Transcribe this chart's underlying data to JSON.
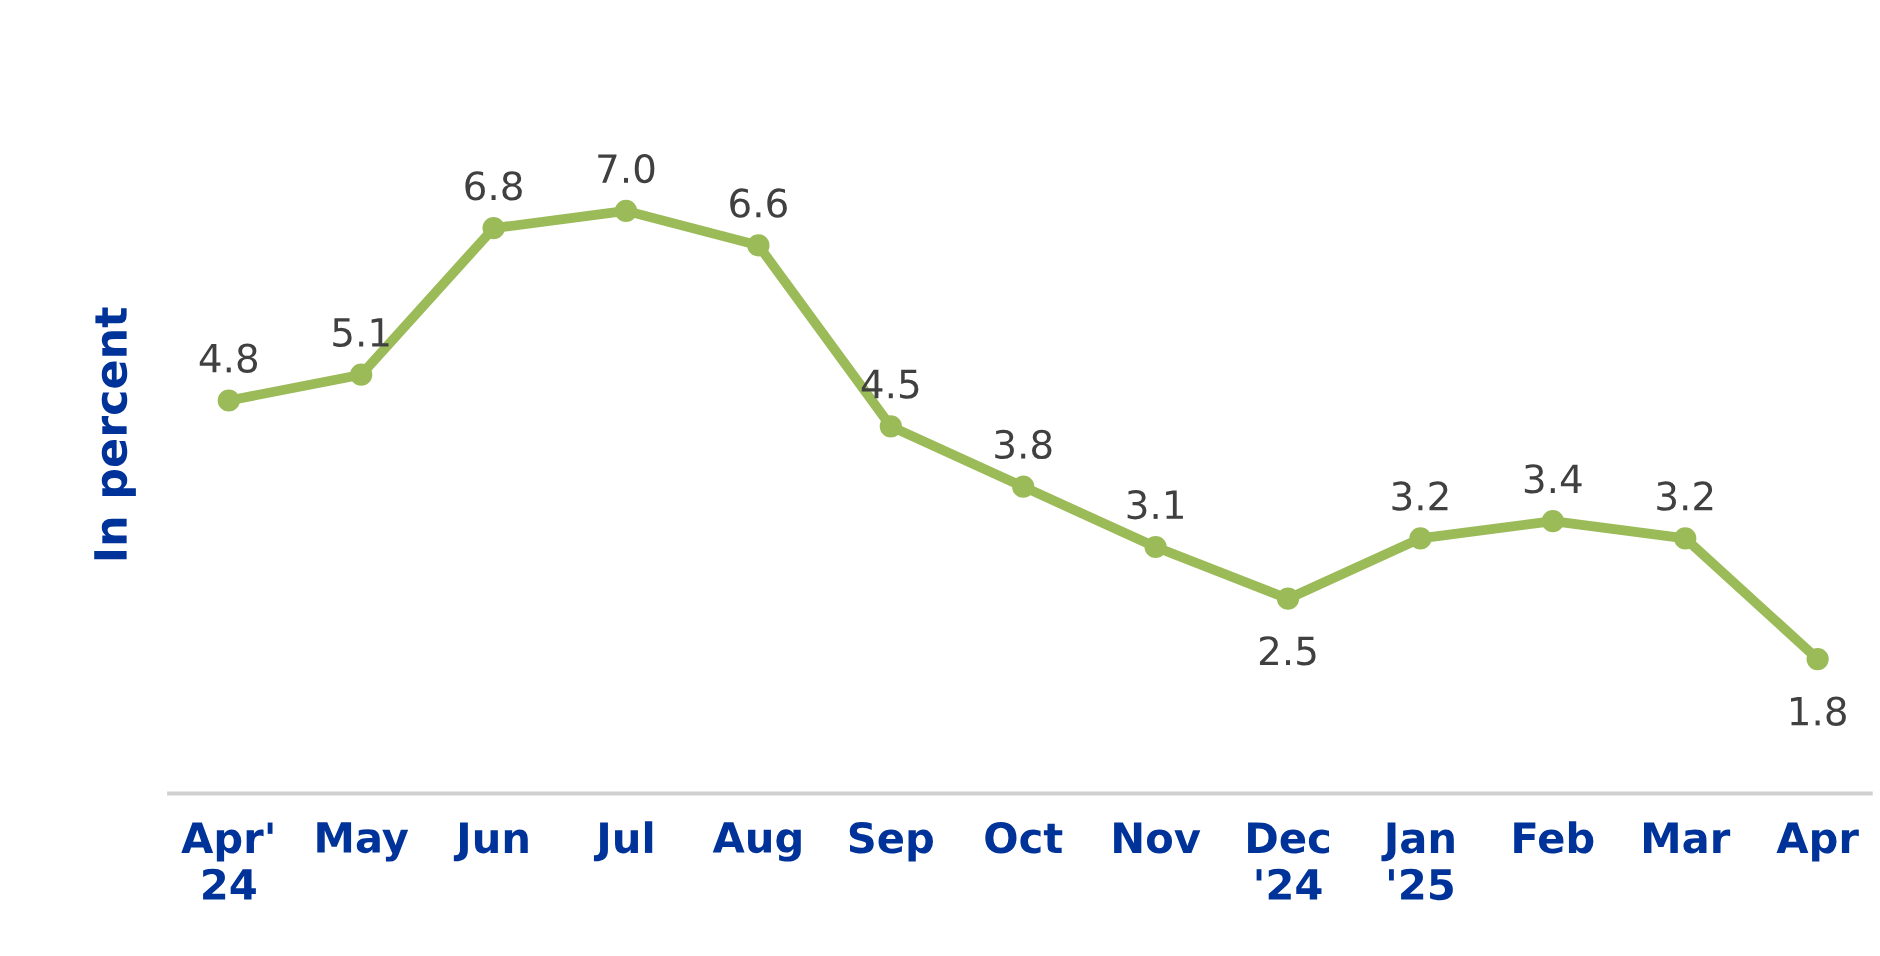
{
  "chart_data": {
    "type": "line",
    "ylabel": "In percent",
    "categories": [
      "Apr'\n24",
      "May",
      "Jun",
      "Jul",
      "Aug",
      "Sep",
      "Oct",
      "Nov",
      "Dec\n'24",
      "Jan\n'25",
      "Feb",
      "Mar",
      "Apr"
    ],
    "series": [
      {
        "color": "#9bbb59",
        "values": [
          4.8,
          5.1,
          6.8,
          7.0,
          6.6,
          4.5,
          3.8,
          3.1,
          2.5,
          3.2,
          3.4,
          3.2,
          1.8
        ],
        "value_labels": [
          "4.8",
          "5.1",
          "6.8",
          "7.0",
          "6.6",
          "4.5",
          "3.8",
          "3.1",
          "2.5",
          "3.2",
          "3.4",
          "3.2",
          "1.8"
        ]
      }
    ],
    "marker": "circle",
    "line_style": "solid"
  }
}
